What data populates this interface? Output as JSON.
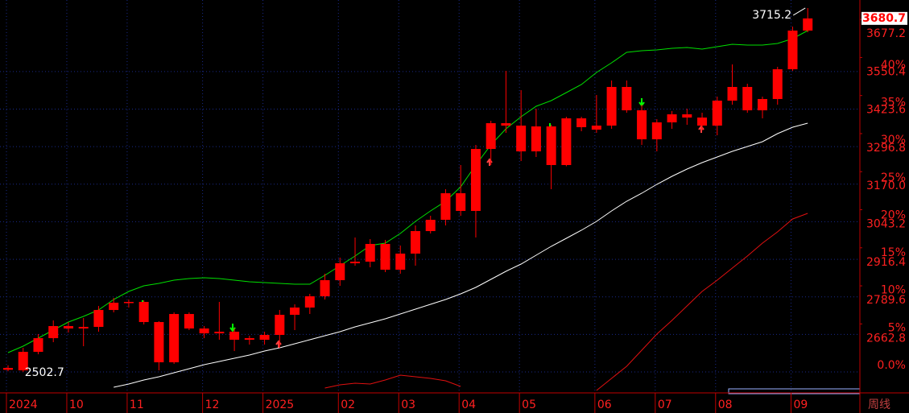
{
  "chart_data": {
    "type": "candlestick",
    "color": "#ff0000",
    "categories": [
      "2024",
      null,
      null,
      null,
      "10",
      null,
      null,
      null,
      "11",
      null,
      null,
      null,
      null,
      "12",
      null,
      null,
      null,
      "2025",
      null,
      null,
      null,
      null,
      "02",
      null,
      null,
      null,
      "03",
      null,
      null,
      null,
      "04",
      null,
      null,
      null,
      "05",
      null,
      null,
      null,
      null,
      "06",
      null,
      null,
      null,
      "07",
      null,
      null,
      null,
      "08",
      null,
      null,
      null,
      null,
      "09",
      null
    ],
    "open": [
      2516.0,
      2508.1,
      2569.7,
      2615.3,
      2655.6,
      2647.5,
      2652.9,
      2709.2,
      2733.4,
      2736.1,
      2669.0,
      2534.9,
      2695.8,
      2647.5,
      2631.4,
      2636.8,
      2610.0,
      2610.0,
      2626.1,
      2693.1,
      2717.3,
      2754.8,
      2808.5,
      2864.8,
      2870.2,
      2929.2,
      2843.4,
      2897.0,
      2972.1,
      3009.7,
      3098.2,
      3039.2,
      3245.7,
      3331.6,
      3323.5,
      3237.7,
      3320.8,
      3192.1,
      3347.7,
      3310.0,
      3323.5,
      3452.3,
      3374.5,
      3277.9,
      3334.3,
      3361.1,
      3350.4,
      3323.5,
      3406.7,
      3452.3,
      3374.5,
      3412.1,
      3511.3,
      3640.1
    ],
    "high": [
      2525.0,
      2583.2,
      2628.8,
      2674.4,
      2669.0,
      2682.4,
      2722.6,
      2749.5,
      2744.1,
      2741.0,
      2672.0,
      2701.2,
      2701.2,
      2655.6,
      2736.1,
      2647.5,
      2623.4,
      2636.8,
      2709.2,
      2728.0,
      2762.9,
      2830.0,
      2883.6,
      2950.7,
      2945.3,
      2942.6,
      2923.8,
      2990.9,
      3023.1,
      3111.6,
      3192.1,
      3259.1,
      3339.6,
      3505.9,
      3441.6,
      3379.9,
      3326.2,
      3353.0,
      3353.0,
      3425.5,
      3473.7,
      3473.7,
      3393.3,
      3345.0,
      3371.8,
      3379.9,
      3366.4,
      3420.1,
      3527.4,
      3463.0,
      3420.1,
      3519.4,
      3653.5,
      3715.2
    ],
    "low": [
      2505.0,
      2502.7,
      2561.7,
      2601.9,
      2634.1,
      2588.5,
      2636.8,
      2701.2,
      2717.3,
      2661.0,
      2508.1,
      2529.5,
      2642.2,
      2615.3,
      2610.0,
      2572.4,
      2593.9,
      2593.9,
      2583.2,
      2642.2,
      2695.8,
      2744.1,
      2789.7,
      2856.8,
      2851.4,
      2835.3,
      2830.0,
      2856.8,
      2964.1,
      2990.9,
      3023.1,
      2950.7,
      3192.1,
      3299.4,
      3205.5,
      3218.9,
      3111.6,
      3188.0,
      3304.8,
      3299.4,
      3312.8,
      3366.4,
      3259.1,
      3237.7,
      3312.8,
      3326.2,
      3307.4,
      3291.3,
      3393.3,
      3366.4,
      3347.7,
      3393.3,
      3505.9,
      3634.7
    ],
    "close": [
      2510.0,
      2569.7,
      2615.3,
      2655.6,
      2647.5,
      2652.9,
      2709.2,
      2733.4,
      2736.1,
      2669.0,
      2534.9,
      2695.8,
      2647.5,
      2631.4,
      2636.8,
      2610.0,
      2615.3,
      2626.1,
      2693.1,
      2717.3,
      2754.8,
      2808.5,
      2864.8,
      2870.2,
      2929.2,
      2843.4,
      2897.0,
      2972.1,
      3009.7,
      3098.2,
      3039.2,
      3245.7,
      3331.6,
      3323.5,
      3237.7,
      3320.8,
      3192.1,
      3347.7,
      3318.2,
      3323.5,
      3452.3,
      3374.5,
      3277.9,
      3334.3,
      3361.1,
      3350.4,
      3323.5,
      3406.7,
      3452.3,
      3374.5,
      3412.1,
      3511.3,
      3640.1,
      3680.7
    ],
    "series": [
      {
        "color": "#00e000",
        "values": [
          2567.0,
          2588.5,
          2615.3,
          2642.2,
          2669.0,
          2687.8,
          2709.2,
          2744.1,
          2770.9,
          2789.7,
          2797.8,
          2808.5,
          2813.9,
          2816.5,
          2813.9,
          2808.5,
          2803.1,
          2800.4,
          2797.8,
          2795.1,
          2795.1,
          2824.6,
          2856.8,
          2889.0,
          2923.8,
          2931.9,
          2964.1,
          3004.3,
          3039.2,
          3071.4,
          3119.7,
          3192.1,
          3259.1,
          3312.8,
          3353.0,
          3387.9,
          3406.7,
          3433.5,
          3460.3,
          3500.6,
          3532.8,
          3567.6,
          3573.0,
          3575.7,
          3581.1,
          3583.7,
          3578.4,
          3586.4,
          3594.5,
          3591.8,
          3591.8,
          3597.1,
          3613.2,
          3640.1
        ]
      },
      {
        "color": "#ffffff",
        "values": [
          null,
          null,
          null,
          null,
          null,
          null,
          null,
          2451.7,
          2462.4,
          2475.9,
          2486.6,
          2500.0,
          2513.4,
          2526.8,
          2537.6,
          2548.3,
          2559.0,
          2572.4,
          2583.2,
          2596.6,
          2610.0,
          2623.4,
          2636.8,
          2652.9,
          2666.3,
          2679.7,
          2695.8,
          2711.9,
          2728.0,
          2744.1,
          2762.9,
          2784.3,
          2811.2,
          2838.0,
          2862.1,
          2891.6,
          2921.2,
          2948.0,
          2974.8,
          3004.3,
          3039.2,
          3071.4,
          3098.2,
          3127.7,
          3154.5,
          3178.7,
          3200.1,
          3218.9,
          3237.7,
          3253.8,
          3269.9,
          3296.7,
          3318.2,
          3331.6
        ]
      },
      {
        "color": "#e01010",
        "values": [
          null,
          null,
          null,
          null,
          null,
          null,
          null,
          null,
          null,
          null,
          null,
          null,
          null,
          null,
          null,
          null,
          null,
          null,
          null,
          null,
          null,
          2449.0,
          2459.8,
          2465.1,
          2462.4,
          2475.9,
          2492.0,
          2486.6,
          2481.2,
          2473.2,
          2454.4,
          null,
          null,
          null,
          null,
          null,
          null,
          null,
          null,
          2441.0,
          2481.2,
          2521.5,
          2575.1,
          2628.8,
          2674.4,
          2722.6,
          2770.9,
          2808.5,
          2848.7,
          2889.0,
          2931.9,
          2969.4,
          3012.4,
          3031.1
        ]
      }
    ],
    "ylim": [
      2433,
      3742
    ],
    "yticks": [
      3677.2,
      3550.4,
      3423.6,
      3296.8,
      {
        "value": 3170,
        "label": "3170.0"
      },
      3043.2,
      2916.4,
      2789.6,
      2662.8
    ],
    "y2lim": [
      -2.785,
      49.52
    ],
    "y2ticks": [
      {
        "value": 40,
        "label": "40%"
      },
      {
        "value": 35,
        "label": "35%"
      },
      {
        "value": 30,
        "label": "30%"
      },
      {
        "value": 25,
        "label": "25%"
      },
      {
        "value": 20,
        "label": "20%"
      },
      {
        "value": 15,
        "label": "15%"
      },
      {
        "value": 10,
        "label": "10%"
      },
      {
        "value": 5,
        "label": "5%"
      },
      {
        "value": 0,
        "label": "0.0%"
      }
    ],
    "grid": true,
    "period": "周线"
  }
}
